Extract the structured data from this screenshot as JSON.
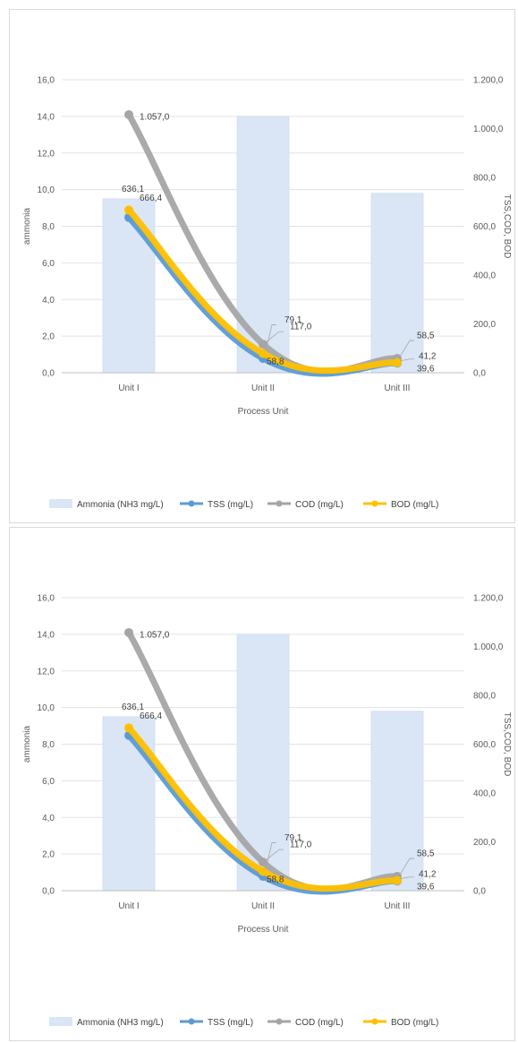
{
  "chart_data": [
    {
      "type": "bar",
      "combo": "bar+line",
      "title": "",
      "xlabel": "Process Unit",
      "ylabel": "ammonia",
      "y2label": "TSS,COD, BOD",
      "categories": [
        "Unit I",
        "Unit II",
        "Unit III"
      ],
      "ylim": [
        0,
        16
      ],
      "y_ticks": [
        "0,0",
        "2,0",
        "4,0",
        "6,0",
        "8,0",
        "10,0",
        "12,0",
        "14,0",
        "16,0"
      ],
      "y2lim": [
        0,
        1200
      ],
      "y2_ticks": [
        "0,0",
        "200,0",
        "400,0",
        "600,0",
        "800,0",
        "1.000,0",
        "1.200,0"
      ],
      "grid": true,
      "legend_position": "bottom",
      "series": [
        {
          "name": "Ammonia (NH3 mg/L)",
          "kind": "bar",
          "axis": "left",
          "values": [
            9.5,
            14.0,
            9.8
          ],
          "color": "#dae6f5"
        },
        {
          "name": "TSS (mg/L)",
          "kind": "line",
          "axis": "right",
          "values": [
            636.1,
            58.8,
            39.6
          ],
          "color": "#5b9bd5"
        },
        {
          "name": "COD (mg/L)",
          "kind": "line",
          "axis": "right",
          "values": [
            1057.0,
            117.0,
            58.5
          ],
          "color": "#a5a5a5"
        },
        {
          "name": "BOD (mg/L)",
          "kind": "line",
          "axis": "right",
          "values": [
            666.4,
            79.1,
            41.2
          ],
          "color": "#ffc000"
        }
      ],
      "data_labels": [
        {
          "text": "1.057,0",
          "series": 2,
          "point": 0
        },
        {
          "text": "636,1",
          "series": 1,
          "point": 0
        },
        {
          "text": "666,4",
          "series": 3,
          "point": 0
        },
        {
          "text": "79,1",
          "series": 3,
          "point": 1
        },
        {
          "text": "117,0",
          "series": 2,
          "point": 1
        },
        {
          "text": "58,8",
          "series": 1,
          "point": 1
        },
        {
          "text": "58,5",
          "series": 2,
          "point": 2
        },
        {
          "text": "41,2",
          "series": 3,
          "point": 2
        },
        {
          "text": "39,6",
          "series": 1,
          "point": 2
        }
      ]
    },
    {
      "type": "bar",
      "combo": "bar+line",
      "title": "",
      "xlabel": "Process Unit",
      "ylabel": "ammonia",
      "y2label": "TSS,COD, BOD",
      "categories": [
        "Unit I",
        "Unit II",
        "Unit III"
      ],
      "ylim": [
        0,
        16
      ],
      "y_ticks": [
        "0,0",
        "2,0",
        "4,0",
        "6,0",
        "8,0",
        "10,0",
        "12,0",
        "14,0",
        "16,0"
      ],
      "y2lim": [
        0,
        1200
      ],
      "y2_ticks": [
        "0,0",
        "200,0",
        "400,0",
        "600,0",
        "800,0",
        "1.000,0",
        "1.200,0"
      ],
      "grid": true,
      "legend_position": "bottom",
      "series": [
        {
          "name": "Ammonia (NH3 mg/L)",
          "kind": "bar",
          "axis": "left",
          "values": [
            9.5,
            14.0,
            9.8
          ],
          "color": "#dae6f5"
        },
        {
          "name": "TSS (mg/L)",
          "kind": "line",
          "axis": "right",
          "values": [
            636.1,
            58.8,
            39.6
          ],
          "color": "#5b9bd5"
        },
        {
          "name": "COD (mg/L)",
          "kind": "line",
          "axis": "right",
          "values": [
            1057.0,
            117.0,
            58.5
          ],
          "color": "#a5a5a5"
        },
        {
          "name": "BOD (mg/L)",
          "kind": "line",
          "axis": "right",
          "values": [
            666.4,
            79.1,
            41.2
          ],
          "color": "#ffc000"
        }
      ],
      "data_labels": [
        {
          "text": "1.057,0",
          "series": 2,
          "point": 0
        },
        {
          "text": "636,1",
          "series": 1,
          "point": 0
        },
        {
          "text": "666,4",
          "series": 3,
          "point": 0
        },
        {
          "text": "79,1",
          "series": 3,
          "point": 1
        },
        {
          "text": "117,0",
          "series": 2,
          "point": 1
        },
        {
          "text": "58,8",
          "series": 1,
          "point": 1
        },
        {
          "text": "58,5",
          "series": 2,
          "point": 2
        },
        {
          "text": "41,2",
          "series": 3,
          "point": 2
        },
        {
          "text": "39,6",
          "series": 1,
          "point": 2
        }
      ]
    }
  ]
}
